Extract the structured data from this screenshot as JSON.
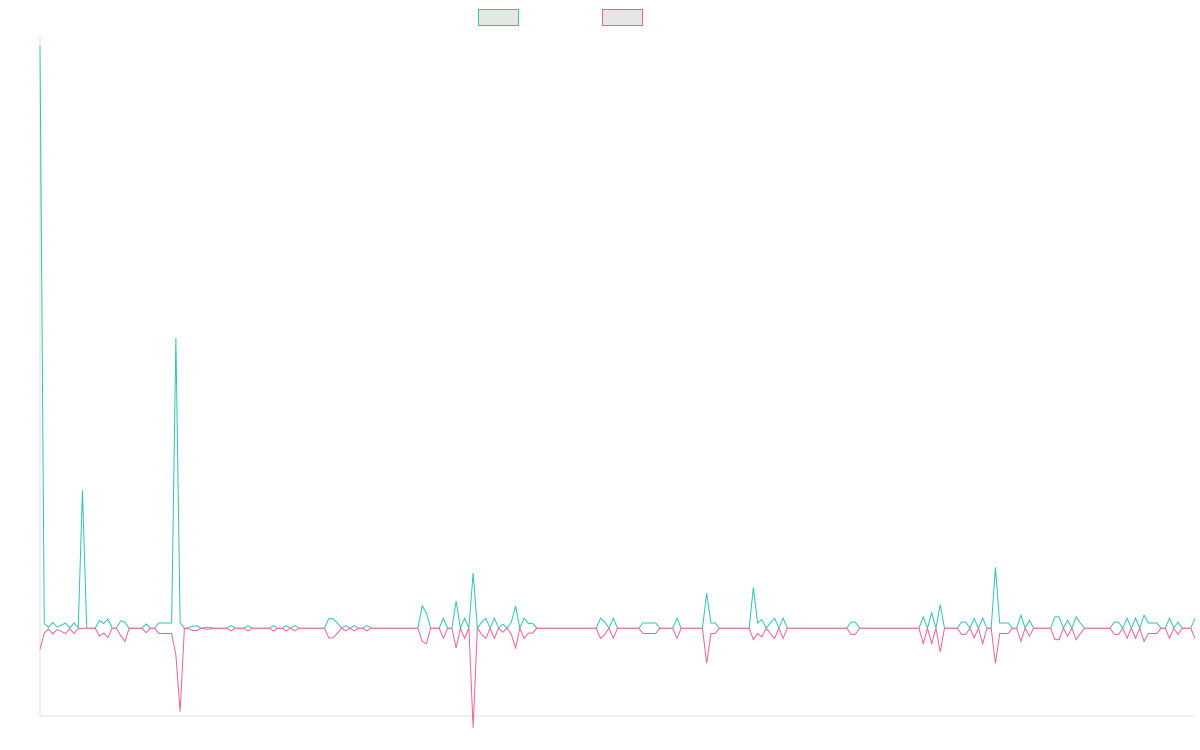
{
  "chart_data": {
    "type": "line",
    "title": "",
    "xlabel": "",
    "ylabel": "",
    "grid": false,
    "legend_position": "top-center",
    "ylim": [
      -20,
      135
    ],
    "series": [
      {
        "name": "",
        "color": "#2ec4b6",
        "fill": "#e6e6e6",
        "values": [
          132.7,
          1.1,
          0.2,
          1.3,
          0.3,
          0.7,
          1.2,
          0.1,
          1.2,
          0.1,
          31.4,
          0,
          0,
          0,
          1.8,
          1.1,
          2.1,
          0,
          0,
          1.7,
          1.4,
          0,
          0,
          0,
          0,
          1.0,
          0,
          0,
          1.2,
          1.2,
          1.2,
          1.2,
          66.2,
          1.3,
          0,
          0.1,
          0.5,
          0.5,
          0,
          0.2,
          0.2,
          0,
          0,
          0,
          0,
          0.6,
          0,
          0,
          0,
          0.6,
          0,
          0,
          0,
          0,
          0,
          0.6,
          0,
          0,
          0.6,
          0,
          0.6,
          0,
          0,
          0,
          0,
          0,
          0,
          0,
          2.2,
          2.2,
          1.2,
          0,
          0.6,
          0,
          0.6,
          0,
          0,
          0.6,
          0,
          0,
          0,
          0,
          0,
          0,
          0,
          0,
          0,
          0,
          0,
          0,
          5.1,
          3.5,
          0,
          0,
          0,
          2.3,
          0,
          0,
          6.2,
          0,
          2.3,
          0,
          12.6,
          0,
          1.4,
          2.3,
          0,
          2.3,
          0,
          0.9,
          0,
          1.4,
          5.1,
          0,
          2.3,
          1.1,
          1.1,
          0,
          0,
          0,
          0,
          0,
          0,
          0,
          0,
          0,
          0,
          0,
          0,
          0,
          0,
          0,
          2.3,
          1.4,
          0,
          2.3,
          0,
          0,
          0,
          0,
          0,
          0,
          1.2,
          1.2,
          1.2,
          1.2,
          0,
          0,
          0,
          0,
          2.3,
          0,
          0,
          0,
          0,
          0,
          0,
          8.0,
          1.2,
          1.2,
          0,
          0,
          0,
          0,
          0,
          0,
          0,
          0,
          9.3,
          1.2,
          2.0,
          0,
          1.2,
          2.3,
          0,
          2.3,
          0,
          0,
          0,
          0,
          0,
          0,
          0,
          0,
          0,
          0,
          0,
          0,
          0,
          0,
          0,
          1.4,
          1.4,
          0,
          0,
          0,
          0,
          0,
          0,
          0,
          0,
          0,
          0,
          0,
          0,
          0,
          0,
          0,
          2.6,
          0,
          3.5,
          0,
          5.4,
          0,
          0,
          0,
          0,
          1.4,
          1.4,
          0,
          2.2,
          0,
          2.3,
          0,
          0,
          13.9,
          1.2,
          1.2,
          1.2,
          0,
          0,
          3.0,
          0,
          1.8,
          0,
          0,
          0,
          0,
          0,
          2.6,
          2.6,
          0,
          1.8,
          0,
          2.6,
          1.2,
          0,
          0,
          0,
          0,
          0,
          0,
          0,
          1.4,
          1.4,
          0,
          2.3,
          0,
          2.3,
          0,
          3.0,
          1.2,
          1.2,
          1.2,
          0,
          0,
          2.3,
          0,
          1.4,
          0,
          0,
          0,
          2.3
        ]
      },
      {
        "name": "",
        "color": "#f06292",
        "fill": "#e6e6e6",
        "values": [
          -4.8,
          -1.1,
          -0.2,
          -1.3,
          -0.3,
          -0.7,
          -1.2,
          -0.1,
          -1.2,
          -0.1,
          0,
          0,
          0,
          0,
          -1.8,
          -1.1,
          -2.1,
          0,
          0,
          -1.7,
          -3.0,
          0,
          0,
          0,
          0,
          -1.0,
          0,
          0,
          -1.2,
          -1.2,
          -1.2,
          -1.2,
          -6.1,
          -19.0,
          0,
          -0.1,
          -0.5,
          -0.5,
          0,
          -0.2,
          -0.2,
          0,
          0,
          0,
          0,
          -0.6,
          0,
          0,
          0,
          -0.6,
          0,
          0,
          0,
          0,
          0,
          -0.6,
          0,
          0,
          -0.6,
          0,
          -0.6,
          0,
          0,
          0,
          0,
          0,
          0,
          0,
          -2.2,
          -2.2,
          -1.2,
          0,
          -0.6,
          0,
          -0.6,
          0,
          0,
          -0.6,
          0,
          0,
          0,
          0,
          0,
          0,
          0,
          0,
          0,
          0,
          0,
          0,
          -3.0,
          -3.5,
          0,
          0,
          0,
          -2.3,
          0,
          0,
          -4.5,
          0,
          -2.3,
          0,
          -22.7,
          0,
          -1.4,
          -2.3,
          0,
          -2.3,
          0,
          -0.9,
          0,
          -1.4,
          -4.5,
          0,
          -2.3,
          -1.1,
          -1.1,
          0,
          0,
          0,
          0,
          0,
          0,
          0,
          0,
          0,
          0,
          0,
          0,
          0,
          0,
          0,
          -2.3,
          -1.4,
          0,
          -2.3,
          0,
          0,
          0,
          0,
          0,
          0,
          -1.2,
          -1.2,
          -1.2,
          -1.2,
          0,
          0,
          0,
          0,
          -2.3,
          0,
          0,
          0,
          0,
          0,
          0,
          -8.0,
          -1.2,
          -1.2,
          0,
          0,
          0,
          0,
          0,
          0,
          0,
          0,
          -2.6,
          -1.2,
          -2.0,
          0,
          -1.2,
          -2.3,
          0,
          -2.3,
          0,
          0,
          0,
          0,
          0,
          0,
          0,
          0,
          0,
          0,
          0,
          0,
          0,
          0,
          0,
          -1.4,
          -1.4,
          0,
          0,
          0,
          0,
          0,
          0,
          0,
          0,
          0,
          0,
          0,
          0,
          0,
          0,
          0,
          -3.5,
          0,
          -3.5,
          0,
          -5.4,
          0,
          0,
          0,
          0,
          -1.4,
          -1.4,
          0,
          -2.2,
          0,
          -3.5,
          0,
          0,
          -8.0,
          -1.2,
          -1.2,
          -1.2,
          0,
          0,
          -3.0,
          0,
          -1.8,
          0,
          0,
          0,
          0,
          0,
          -2.6,
          -2.6,
          0,
          -1.8,
          0,
          -2.6,
          -1.2,
          0,
          0,
          0,
          0,
          0,
          0,
          0,
          -1.4,
          -1.4,
          0,
          -2.3,
          0,
          -2.3,
          0,
          -3.0,
          -1.2,
          -1.2,
          -1.2,
          0,
          0,
          -2.3,
          0,
          -1.4,
          0,
          0,
          0,
          -2.3
        ]
      }
    ]
  }
}
